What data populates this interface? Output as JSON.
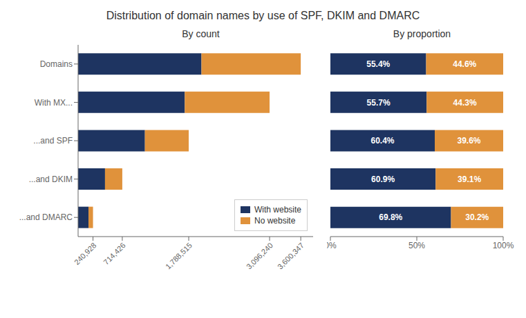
{
  "chart_data": [
    {
      "type": "bar",
      "title": "Distribution of domain names by use of SPF, DKIM and DMARC",
      "subtitle": "By count",
      "orientation": "horizontal",
      "stacked": true,
      "categories": [
        "Domains",
        "With MX...",
        "...and SPF",
        "...and DKIM",
        "...and DMARC"
      ],
      "series": [
        {
          "name": "With website",
          "color": "#1e3461",
          "values": [
            1994592.238,
            1724605.68,
            1080263.06,
            435085.434,
            168167.744
          ]
        },
        {
          "name": "No website",
          "color": "#e0923b",
          "values": [
            1605754.762,
            1371634.32,
            708251.94,
            279340.566,
            72760.256
          ]
        }
      ],
      "xlim": [
        0,
        3800000
      ],
      "xticks": [
        {
          "value": 240928,
          "label": "240,928"
        },
        {
          "value": 714426,
          "label": "714,426"
        },
        {
          "value": 1788515,
          "label": "1,788,515"
        },
        {
          "value": 3096240,
          "label": "3,096,240"
        },
        {
          "value": 3600347,
          "label": "3,600,347"
        }
      ],
      "legend": "lower right",
      "grid": false
    },
    {
      "type": "bar",
      "subtitle": "By proportion",
      "orientation": "horizontal",
      "stacked": true,
      "categories": [
        "Domains",
        "With MX...",
        "...and SPF",
        "...and DKIM",
        "...and DMARC"
      ],
      "series": [
        {
          "name": "With website",
          "color": "#1e3461",
          "values": [
            55.4,
            55.7,
            60.4,
            60.9,
            69.8
          ],
          "value_labels": [
            "55.4%",
            "55.7%",
            "60.4%",
            "60.9%",
            "69.8%"
          ]
        },
        {
          "name": "No website",
          "color": "#e0923b",
          "values": [
            44.6,
            44.3,
            39.6,
            39.1,
            30.2
          ],
          "value_labels": [
            "44.6%",
            "44.3%",
            "39.6%",
            "39.1%",
            "30.2%"
          ]
        }
      ],
      "xlim": [
        0,
        100
      ],
      "xticks": [
        {
          "value": 0,
          "label": "0%"
        },
        {
          "value": 50,
          "label": "50%"
        },
        {
          "value": 100,
          "label": "100%"
        }
      ],
      "data_labels": true,
      "tick_labels": "x",
      "grid": false
    }
  ]
}
